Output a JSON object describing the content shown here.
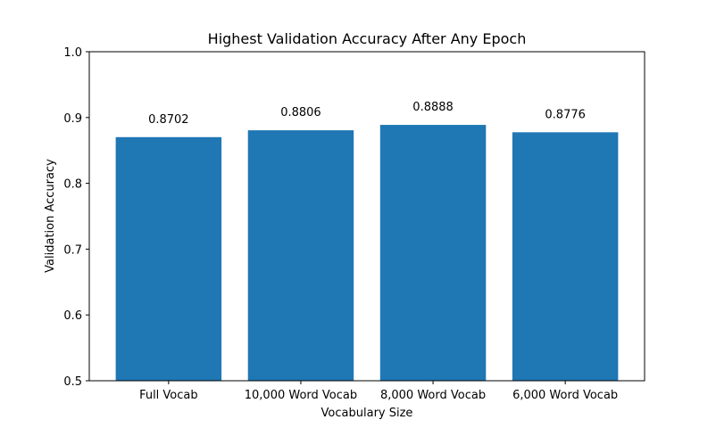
{
  "chart_data": {
    "type": "bar",
    "title": "Highest Validation Accuracy After Any Epoch",
    "xlabel": "Vocabulary Size",
    "ylabel": "Validation Accuracy",
    "categories": [
      "Full Vocab",
      "10,000 Word Vocab",
      "8,000 Word Vocab",
      "6,000 Word Vocab"
    ],
    "values": [
      0.8702,
      0.8806,
      0.8888,
      0.8776
    ],
    "data_labels": [
      "0.8702",
      "0.8806",
      "0.8888",
      "0.8776"
    ],
    "ylim": [
      0.5,
      1.0
    ],
    "yticks": [
      "0.5",
      "0.6",
      "0.7",
      "0.8",
      "0.9",
      "1.0"
    ],
    "bar_color": "#1f77b4",
    "grid": false,
    "legend": "none"
  }
}
